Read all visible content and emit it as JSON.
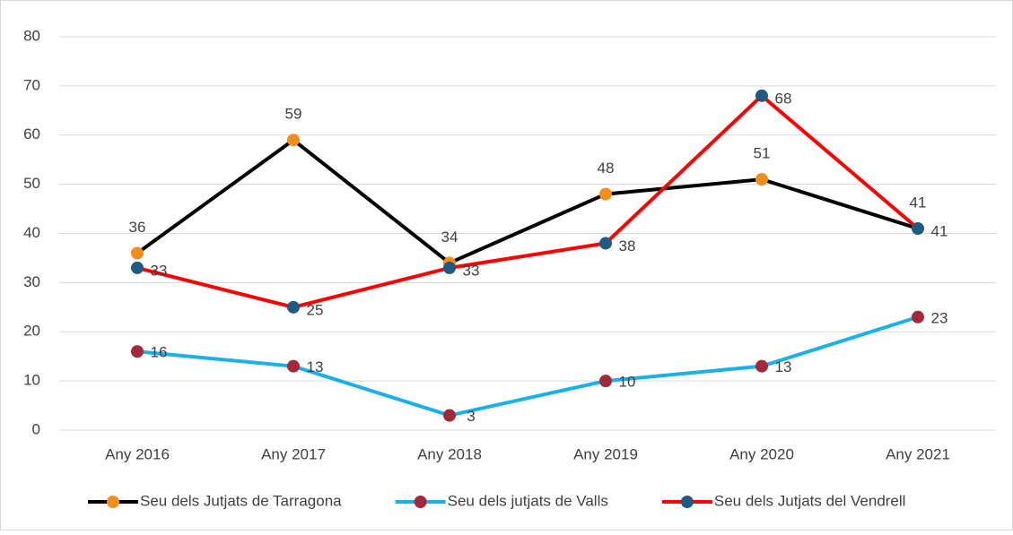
{
  "chart_data": {
    "type": "line",
    "categories": [
      "Any 2016",
      "Any 2017",
      "Any 2018",
      "Any 2019",
      "Any 2020",
      "Any 2021"
    ],
    "series": [
      {
        "name": "Seu dels Jutjats de Tarragona",
        "color": "#000000",
        "marker_color": "#f28e1c",
        "values": [
          36,
          59,
          34,
          48,
          51,
          41
        ]
      },
      {
        "name": "Seu dels jutjats de Valls",
        "color": "#1ab0e8",
        "marker_color": "#a3283a",
        "values": [
          16,
          13,
          3,
          10,
          13,
          23
        ]
      },
      {
        "name": "Seu dels Jutjats del Vendrell",
        "color": "#ff0000",
        "marker_color": "#1f5a82",
        "values": [
          33,
          25,
          33,
          38,
          68,
          41
        ]
      }
    ],
    "ylim": [
      0,
      80
    ],
    "yticks": [
      0,
      10,
      20,
      30,
      40,
      50,
      60,
      70,
      80
    ],
    "grid": true,
    "legend": "bottom"
  }
}
